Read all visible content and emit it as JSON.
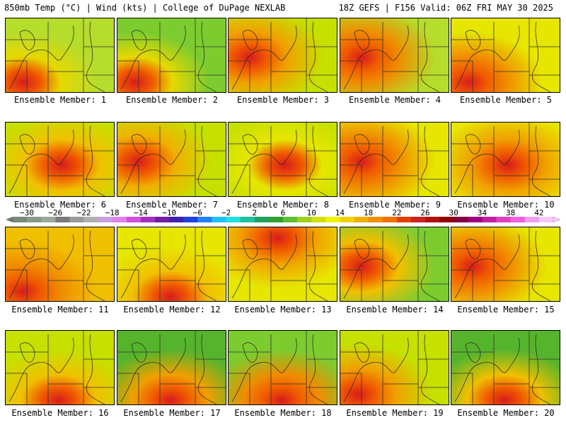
{
  "header": {
    "left": "850mb Temp (°C) | Wind (kts) | College of DuPage NEXLAB",
    "right": "18Z GEFS | F156 Valid: 06Z FRI MAY 30 2025"
  },
  "member_label_prefix": "Ensemble Member: ",
  "members": [
    {
      "number": "1",
      "palette": [
        "#e6d800",
        "#b6dc2c"
      ],
      "hot_zone": "southwest"
    },
    {
      "number": "2",
      "palette": [
        "#e6d800",
        "#7ccc30"
      ],
      "hot_zone": "southwest"
    },
    {
      "number": "3",
      "palette": [
        "#f0a000",
        "#c6e000"
      ],
      "hot_zone": "west"
    },
    {
      "number": "4",
      "palette": [
        "#f08c00",
        "#b6dc2c"
      ],
      "hot_zone": "west"
    },
    {
      "number": "5",
      "palette": [
        "#f08c00",
        "#e6e600"
      ],
      "hot_zone": "southwest"
    },
    {
      "number": "6",
      "palette": [
        "#f0c000",
        "#c6e000"
      ],
      "hot_zone": "center"
    },
    {
      "number": "7",
      "palette": [
        "#f0b000",
        "#c6e000"
      ],
      "hot_zone": "west"
    },
    {
      "number": "8",
      "palette": [
        "#e6e600",
        "#c6e000"
      ],
      "hot_zone": "center"
    },
    {
      "number": "9",
      "palette": [
        "#f08c00",
        "#e6e600"
      ],
      "hot_zone": "west"
    },
    {
      "number": "10",
      "palette": [
        "#f0a000",
        "#e6e600"
      ],
      "hot_zone": "center"
    },
    {
      "number": "11",
      "palette": [
        "#f08c00",
        "#f0c000"
      ],
      "hot_zone": "southwest"
    },
    {
      "number": "12",
      "palette": [
        "#f0c000",
        "#e6e600"
      ],
      "hot_zone": "south"
    },
    {
      "number": "13",
      "palette": [
        "#f0a000",
        "#e6e600"
      ],
      "hot_zone": "north"
    },
    {
      "number": "14",
      "palette": [
        "#f0c000",
        "#7ccc30"
      ],
      "hot_zone": "west"
    },
    {
      "number": "15",
      "palette": [
        "#f08c00",
        "#e6e600"
      ],
      "hot_zone": "west"
    },
    {
      "number": "16",
      "palette": [
        "#f0c000",
        "#c6e000"
      ],
      "hot_zone": "south"
    },
    {
      "number": "17",
      "palette": [
        "#f0a000",
        "#56b42c"
      ],
      "hot_zone": "south"
    },
    {
      "number": "18",
      "palette": [
        "#f08c00",
        "#7ccc30"
      ],
      "hot_zone": "south"
    },
    {
      "number": "19",
      "palette": [
        "#f0a000",
        "#c6e000"
      ],
      "hot_zone": "southwest"
    },
    {
      "number": "20",
      "palette": [
        "#f0c000",
        "#56b42c"
      ],
      "hot_zone": "south"
    }
  ],
  "colorbar": {
    "ticks": [
      "−30",
      "−26",
      "−22",
      "−18",
      "−14",
      "−10",
      "−6",
      "−2",
      "2",
      "6",
      "10",
      "14",
      "18",
      "22",
      "26",
      "30",
      "34",
      "38",
      "42"
    ],
    "colors": [
      "#7a8a7a",
      "#8a9a8a",
      "#9aa89a",
      "#7a7a7a",
      "#9a9a9a",
      "#b0b0b0",
      "#c8a0e0",
      "#e080f0",
      "#d050e0",
      "#a030c0",
      "#7020a0",
      "#4020b0",
      "#2040e0",
      "#2080ff",
      "#20c0ff",
      "#20e0e0",
      "#20c0a0",
      "#20a060",
      "#30a030",
      "#60c030",
      "#a0d020",
      "#d0e000",
      "#f0f000",
      "#f0d000",
      "#f0b000",
      "#f09000",
      "#f07000",
      "#e04000",
      "#d02020",
      "#b01010",
      "#900000",
      "#800040",
      "#a00080",
      "#c020a0",
      "#e040c0",
      "#f060e0",
      "#f0a0f0",
      "#f8c8f8"
    ]
  }
}
